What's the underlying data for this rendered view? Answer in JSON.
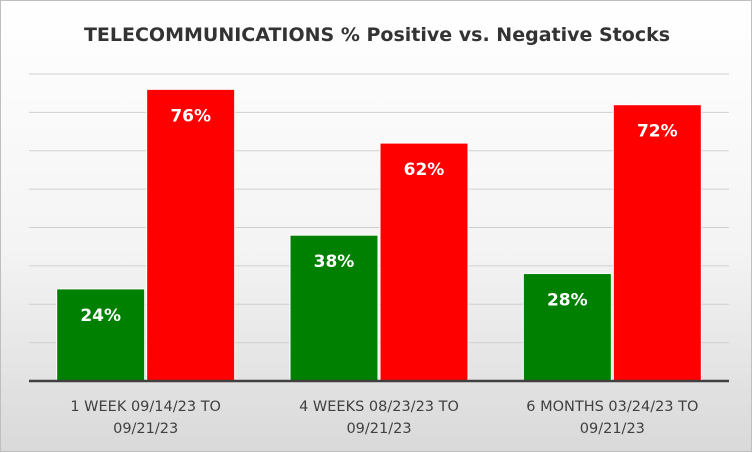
{
  "chart_data": {
    "type": "bar",
    "title": "TELECOMMUNICATIONS % Positive vs. Negative Stocks",
    "categories": [
      [
        "1 WEEK 09/14/23 TO",
        "09/21/23"
      ],
      [
        "4 WEEKS 08/23/23 TO",
        "09/21/23"
      ],
      [
        "6 MONTHS 03/24/23 TO",
        "09/21/23"
      ]
    ],
    "series": [
      {
        "values": [
          24,
          38,
          28
        ],
        "labels": [
          "24%",
          "38%",
          "28%"
        ],
        "color": "#008000"
      },
      {
        "values": [
          76,
          62,
          72
        ],
        "labels": [
          "76%",
          "62%",
          "72%"
        ],
        "color": "#ff0000"
      }
    ],
    "ylim": [
      0,
      80
    ],
    "grid": true,
    "legend": "none"
  }
}
